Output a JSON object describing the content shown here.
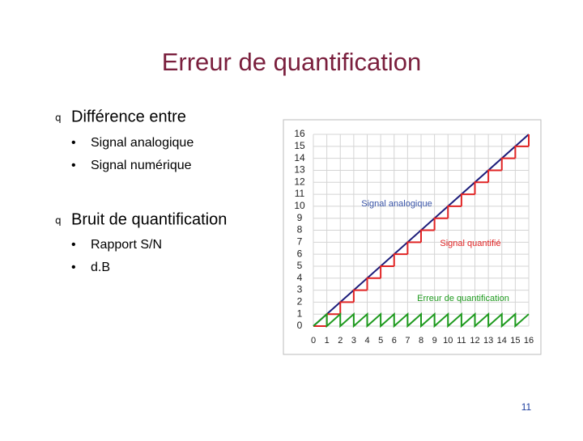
{
  "slide": {
    "title": "Erreur de quantification",
    "bullets": [
      {
        "marker": "q",
        "text": "Différence entre",
        "items": [
          {
            "marker": "•",
            "text": "Signal analogique"
          },
          {
            "marker": "•",
            "text": "Signal numérique"
          }
        ]
      },
      {
        "marker": "q",
        "text": "Bruit de quantification",
        "items": [
          {
            "marker": "•",
            "text": "Rapport S/N"
          },
          {
            "marker": "•",
            "text": "d.B"
          }
        ]
      }
    ],
    "page_number": "11"
  },
  "figure": {
    "type": "line",
    "xlim": [
      0,
      16
    ],
    "ylim": [
      0,
      16
    ],
    "xticks": [
      0,
      1,
      2,
      3,
      4,
      5,
      6,
      7,
      8,
      9,
      10,
      11,
      12,
      13,
      14,
      15,
      16
    ],
    "yticks": [
      0,
      1,
      2,
      3,
      4,
      5,
      6,
      7,
      8,
      9,
      10,
      11,
      12,
      13,
      14,
      15,
      16
    ],
    "grid": true,
    "series": [
      {
        "name": "Signal analogique",
        "color": "#1c1c7a",
        "style": "line",
        "x": [
          0,
          16
        ],
        "values": [
          0,
          16
        ]
      },
      {
        "name": "Signal quantifié",
        "color": "#e02424",
        "style": "step",
        "x": [
          0,
          1,
          2,
          3,
          4,
          5,
          6,
          7,
          8,
          9,
          10,
          11,
          12,
          13,
          14,
          15,
          16
        ],
        "values": [
          0,
          1,
          2,
          3,
          4,
          5,
          6,
          7,
          8,
          9,
          10,
          11,
          12,
          13,
          14,
          15,
          16
        ]
      },
      {
        "name": "Erreur de quantification",
        "color": "#1e9a1e",
        "style": "line",
        "x": [
          0,
          1,
          1,
          2,
          2,
          3,
          3,
          4,
          4,
          5,
          5,
          6,
          6,
          7,
          7,
          8,
          8,
          9,
          9,
          10,
          10,
          11,
          11,
          12,
          12,
          13,
          13,
          14,
          14,
          15,
          15,
          16
        ],
        "values": [
          0,
          1,
          0,
          1,
          0,
          1,
          0,
          1,
          0,
          1,
          0,
          1,
          0,
          1,
          0,
          1,
          0,
          1,
          0,
          1,
          0,
          1,
          0,
          1,
          0,
          1,
          0,
          1,
          0,
          1,
          0,
          1
        ]
      }
    ]
  }
}
